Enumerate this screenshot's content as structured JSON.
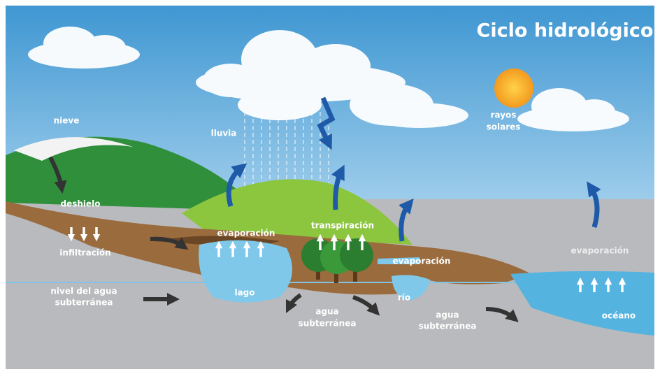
{
  "title": "Ciclo hidrológico",
  "labels": [
    {
      "lines": [
        "nieve"
      ]
    },
    {
      "lines": [
        "lluvia"
      ]
    },
    {
      "lines": [
        "rayos",
        "solares"
      ]
    },
    {
      "lines": [
        "deshielo"
      ]
    },
    {
      "lines": [
        "evaporación"
      ]
    },
    {
      "lines": [
        "transpiración"
      ]
    },
    {
      "lines": [
        "infiltración"
      ]
    },
    {
      "lines": [
        "evaporación"
      ]
    },
    {
      "lines": [
        "evaporación"
      ]
    },
    {
      "lines": [
        "nivel del agua",
        "subterránea"
      ]
    },
    {
      "lines": [
        "lago"
      ]
    },
    {
      "lines": [
        "agua",
        "subterránea"
      ]
    },
    {
      "lines": [
        "río"
      ]
    },
    {
      "lines": [
        "agua",
        "subterránea"
      ]
    },
    {
      "lines": [
        "océano"
      ]
    }
  ]
}
